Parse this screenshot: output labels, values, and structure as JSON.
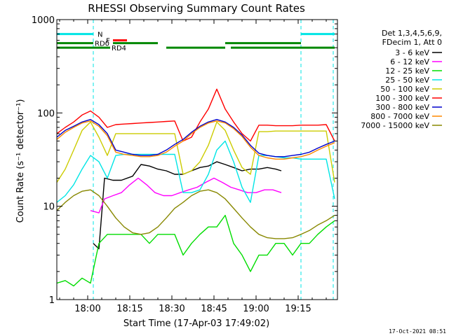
{
  "chart_data": {
    "type": "line",
    "title": "RHESSI Observing Summary Count Rates",
    "xlabel": "Start Time (17-Apr-03 17:49:02)",
    "ylabel": "Count Rate (s⁻¹ detector⁻¹)",
    "x_unit": "minutes after 17:49:02",
    "xlim": [
      0,
      100
    ],
    "ylim": [
      1,
      1000
    ],
    "yscale": "log",
    "x_ticks": [
      {
        "x": 11,
        "label": "18:00"
      },
      {
        "x": 26,
        "label": "18:15"
      },
      {
        "x": 41,
        "label": "18:30"
      },
      {
        "x": 56,
        "label": "18:45"
      },
      {
        "x": 71,
        "label": "19:00"
      },
      {
        "x": 86,
        "label": "19:15"
      }
    ],
    "y_ticks": [
      {
        "y": 1,
        "label": "1"
      },
      {
        "y": 10,
        "label": "10"
      },
      {
        "y": 100,
        "label": "100"
      },
      {
        "y": 1000,
        "label": "1000"
      }
    ],
    "legend_header": [
      "Det 1,3,4,5,6,9,",
      "FDecim 1, Att 0"
    ],
    "legend_position": "right, outside plot",
    "grid": false,
    "series": [
      {
        "name": "3 - 6 keV",
        "color": "#000000",
        "x": [
          13,
          15,
          17,
          20,
          23,
          27,
          30,
          33,
          36,
          39,
          42,
          45,
          48,
          51,
          54,
          57,
          60,
          63,
          66,
          69,
          72,
          75,
          78,
          80
        ],
        "values": [
          4,
          3.5,
          20,
          19,
          19,
          21,
          28,
          27,
          25,
          24,
          22,
          22,
          24,
          26,
          27,
          30,
          28,
          26,
          24,
          25,
          25,
          26,
          25,
          24
        ]
      },
      {
        "name": "6 - 12 keV",
        "color": "#ff00ff",
        "x": [
          12,
          15,
          17,
          20,
          23,
          26,
          29,
          32,
          35,
          38,
          41,
          44,
          47,
          50,
          53,
          56,
          59,
          62,
          65,
          68,
          71,
          74,
          77,
          80
        ],
        "values": [
          9,
          8.5,
          12,
          13,
          14,
          17,
          20,
          17,
          14,
          13,
          13,
          14,
          15,
          16,
          18,
          20,
          18,
          16,
          15,
          14,
          14,
          15,
          15,
          14
        ]
      },
      {
        "name": "12 - 25 keV",
        "color": "#00dd00",
        "x": [
          0,
          3,
          6,
          9,
          12,
          15,
          18,
          21,
          24,
          27,
          30,
          33,
          36,
          39,
          42,
          45,
          48,
          51,
          54,
          57,
          60,
          63,
          66,
          69,
          72,
          75,
          78,
          81,
          84,
          87,
          90,
          93,
          96,
          99
        ],
        "values": [
          1.5,
          1.6,
          1.4,
          1.7,
          1.5,
          4,
          5,
          5,
          5,
          5,
          5,
          4,
          5,
          5,
          5,
          3,
          4,
          5,
          6,
          6,
          8,
          4,
          3,
          2,
          3,
          3,
          4,
          4,
          3,
          4,
          4,
          5,
          6,
          7
        ]
      },
      {
        "name": "25 - 50 keV",
        "color": "#00e5e5",
        "x": [
          0,
          3,
          6,
          9,
          12,
          15,
          18,
          21,
          24,
          27,
          30,
          33,
          36,
          39,
          42,
          45,
          48,
          51,
          54,
          57,
          60,
          63,
          66,
          69,
          72,
          75,
          78,
          81,
          84,
          87,
          90,
          93,
          96,
          99
        ],
        "values": [
          11,
          13,
          17,
          25,
          35,
          30,
          20,
          35,
          36,
          36,
          36,
          36,
          36,
          36,
          36,
          14,
          14,
          15,
          22,
          40,
          50,
          30,
          16,
          11,
          35,
          35,
          34,
          33,
          33,
          32,
          32,
          32,
          32,
          12
        ]
      },
      {
        "name": "50 - 100 keV",
        "color": "#cccc00",
        "x": [
          0,
          3,
          6,
          9,
          12,
          15,
          18,
          21,
          24,
          27,
          30,
          33,
          36,
          39,
          42,
          45,
          48,
          51,
          54,
          57,
          60,
          63,
          66,
          69,
          72,
          75,
          78,
          81,
          84,
          87,
          90,
          93,
          96,
          99
        ],
        "values": [
          18,
          25,
          40,
          65,
          80,
          55,
          35,
          60,
          60,
          60,
          60,
          60,
          60,
          60,
          60,
          22,
          24,
          30,
          45,
          80,
          65,
          40,
          26,
          22,
          63,
          63,
          64,
          64,
          64,
          64,
          64,
          64,
          64,
          18
        ]
      },
      {
        "name": "100 - 300 keV",
        "color": "#ff0000",
        "x": [
          0,
          3,
          6,
          9,
          12,
          15,
          18,
          21,
          24,
          27,
          30,
          33,
          36,
          39,
          42,
          45,
          48,
          51,
          54,
          57,
          60,
          63,
          66,
          69,
          72,
          75,
          78,
          81,
          84,
          87,
          90,
          93,
          96,
          99
        ],
        "values": [
          60,
          70,
          80,
          95,
          105,
          90,
          70,
          75,
          76,
          77,
          78,
          79,
          80,
          81,
          82,
          50,
          55,
          80,
          110,
          180,
          110,
          80,
          60,
          50,
          74,
          74,
          73,
          73,
          73,
          74,
          74,
          74,
          75,
          50
        ]
      },
      {
        "name": "300 - 800 keV",
        "color": "#0000cc",
        "x": [
          0,
          3,
          6,
          9,
          12,
          15,
          18,
          21,
          24,
          27,
          30,
          33,
          36,
          39,
          42,
          45,
          48,
          51,
          54,
          57,
          60,
          63,
          66,
          69,
          72,
          75,
          78,
          81,
          84,
          87,
          90,
          93,
          96,
          99
        ],
        "values": [
          55,
          65,
          72,
          80,
          85,
          75,
          60,
          40,
          38,
          36,
          35,
          35,
          36,
          40,
          46,
          52,
          62,
          72,
          80,
          85,
          80,
          70,
          58,
          45,
          37,
          35,
          34,
          34,
          35,
          36,
          38,
          42,
          46,
          50
        ]
      },
      {
        "name": "800 - 7000 keV",
        "color": "#ff8800",
        "x": [
          0,
          3,
          6,
          9,
          12,
          15,
          18,
          21,
          24,
          27,
          30,
          33,
          36,
          39,
          42,
          45,
          48,
          51,
          54,
          57,
          60,
          63,
          66,
          69,
          72,
          75,
          78,
          81,
          84,
          87,
          90,
          93,
          96,
          99
        ],
        "values": [
          52,
          62,
          70,
          78,
          82,
          72,
          57,
          38,
          36,
          35,
          34,
          34,
          35,
          38,
          44,
          50,
          60,
          70,
          78,
          82,
          78,
          68,
          56,
          43,
          35,
          33,
          32,
          32,
          33,
          34,
          36,
          40,
          44,
          48
        ]
      },
      {
        "name": "7000 - 15000 keV",
        "color": "#888800",
        "x": [
          0,
          3,
          6,
          9,
          12,
          15,
          18,
          21,
          24,
          27,
          30,
          33,
          36,
          39,
          42,
          45,
          48,
          51,
          54,
          57,
          60,
          63,
          66,
          69,
          72,
          75,
          78,
          81,
          84,
          87,
          90,
          93,
          96,
          99
        ],
        "values": [
          9,
          11,
          13,
          14.5,
          15,
          13,
          10,
          7.5,
          6,
          5.2,
          5,
          5.2,
          6,
          7.5,
          9.5,
          11,
          13,
          14.5,
          15,
          14,
          12,
          9.5,
          7.5,
          6,
          5,
          4.6,
          4.5,
          4.5,
          4.6,
          5,
          5.5,
          6.3,
          7,
          8
        ]
      }
    ],
    "annotations": [
      {
        "label": "N",
        "color": "#00e5e5",
        "y": 700,
        "segments": [
          [
            0,
            13
          ],
          [
            87,
            99
          ]
        ]
      },
      {
        "label": "F",
        "color": "#ff0000",
        "y": 600,
        "segments": [
          [
            20,
            25
          ]
        ]
      },
      {
        "label": "RD0",
        "color": "#008800",
        "y": 560,
        "segments": [
          [
            0,
            13
          ],
          [
            20,
            36
          ],
          [
            60,
            87
          ]
        ]
      },
      {
        "label": "RD4",
        "color": "#008800",
        "y": 500,
        "segments": [
          [
            0,
            19
          ],
          [
            39,
            60
          ],
          [
            62,
            99
          ]
        ]
      }
    ],
    "markers": [
      {
        "x": 13,
        "color": "#00e5e5",
        "style": "dashed"
      },
      {
        "x": 87,
        "color": "#00e5e5",
        "style": "dashed"
      },
      {
        "x": 98.5,
        "color": "#00e5e5",
        "style": "dashed"
      }
    ],
    "timestamp": "17-Oct-2021 08:51"
  }
}
